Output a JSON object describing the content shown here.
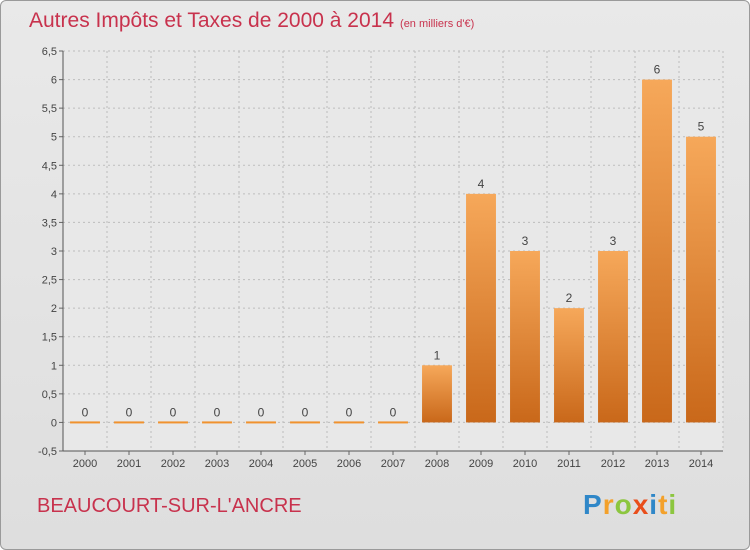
{
  "title": "Autres Impôts et Taxes de 2000 à 2014",
  "unit_label": "(en milliers d'€)",
  "commune": "BEAUCOURT-SUR-L'ANCRE",
  "logo_letters": [
    {
      "ch": "P",
      "color": "#2f87c8"
    },
    {
      "ch": "r",
      "color": "#f3a12b"
    },
    {
      "ch": "o",
      "color": "#8cc63f"
    },
    {
      "ch": "x",
      "color": "#e94e1b"
    },
    {
      "ch": "i",
      "color": "#2f87c8"
    },
    {
      "ch": "t",
      "color": "#f3a12b"
    },
    {
      "ch": "i",
      "color": "#8cc63f"
    }
  ],
  "chart_data": {
    "type": "bar",
    "categories": [
      "2000",
      "2001",
      "2002",
      "2003",
      "2004",
      "2005",
      "2006",
      "2007",
      "2008",
      "2009",
      "2010",
      "2011",
      "2012",
      "2013",
      "2014"
    ],
    "values": [
      0,
      0,
      0,
      0,
      0,
      0,
      0,
      0,
      1,
      4,
      3,
      2,
      3,
      6,
      5
    ],
    "data_labels": [
      "0",
      "0",
      "0",
      "0",
      "0",
      "0",
      "0",
      "0",
      "1",
      "4",
      "3",
      "2",
      "3",
      "6",
      "5"
    ],
    "ylim": [
      -0.5,
      6.5
    ],
    "yticks": [
      -0.5,
      0,
      0.5,
      1,
      1.5,
      2,
      2.5,
      3,
      3.5,
      4,
      4.5,
      5,
      5.5,
      6,
      6.5
    ],
    "ytick_labels": [
      "-0,5",
      "0",
      "0,5",
      "1",
      "1,5",
      "2",
      "2,5",
      "3",
      "3,5",
      "4",
      "4,5",
      "5",
      "5,5",
      "6",
      "6,5"
    ],
    "grid": true,
    "bar_color": "#f0922e",
    "bar_color_dark": "#c9681a",
    "text_color": "#c8324d"
  }
}
